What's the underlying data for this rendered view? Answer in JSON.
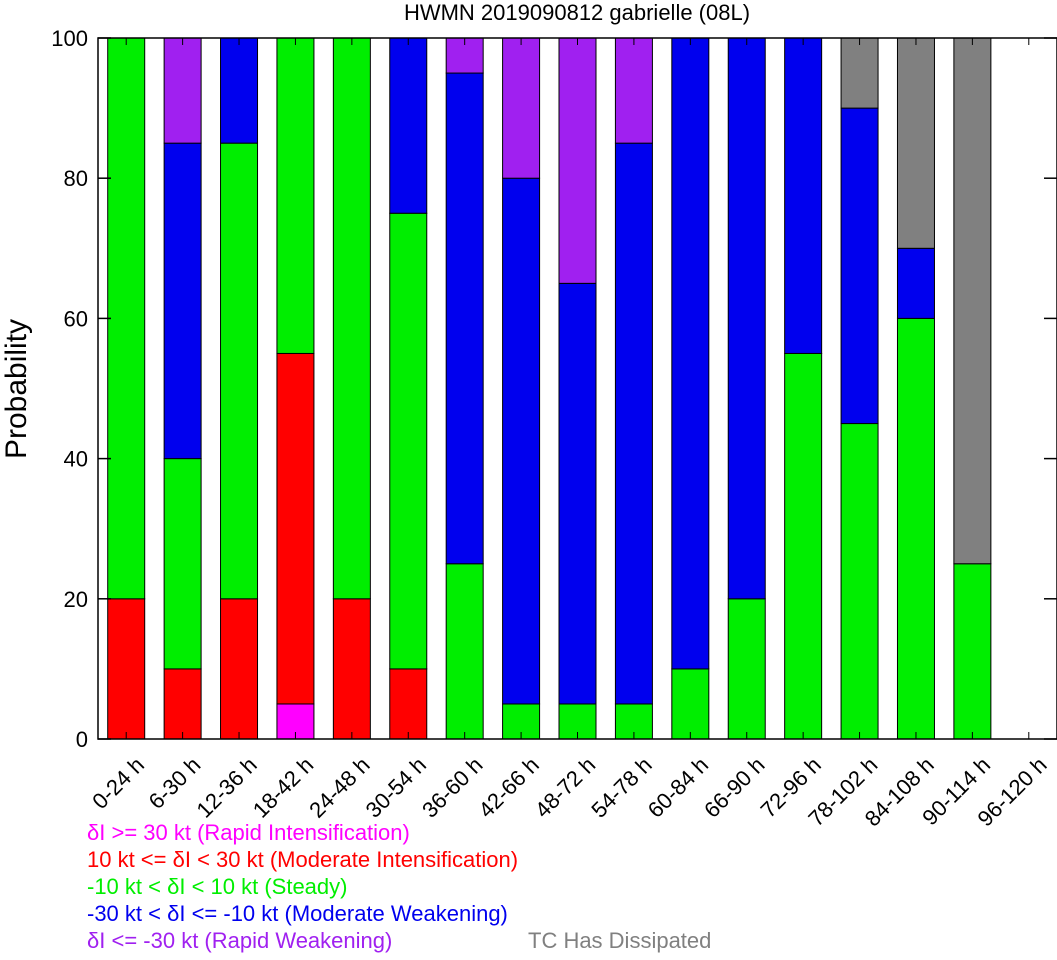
{
  "chart_data": {
    "type": "bar",
    "stacked": true,
    "title": "HWMN 2019090812 gabrielle (08L)",
    "xlabel": "",
    "ylabel": "Probability",
    "ylim": [
      0,
      100
    ],
    "yticks": [
      0,
      20,
      40,
      60,
      80,
      100
    ],
    "grid": false,
    "categories": [
      "0-24 h",
      "6-30 h",
      "12-36 h",
      "18-42 h",
      "24-48 h",
      "30-54 h",
      "36-60 h",
      "42-66 h",
      "48-72 h",
      "54-78 h",
      "60-84 h",
      "66-90 h",
      "72-96 h",
      "78-102 h",
      "84-108 h",
      "90-114 h",
      "96-120 h"
    ],
    "series": [
      {
        "key": "ri",
        "color": "#ff00ff",
        "values": [
          0,
          0,
          0,
          5,
          0,
          0,
          0,
          0,
          0,
          0,
          0,
          0,
          0,
          0,
          0,
          0,
          0
        ]
      },
      {
        "key": "mi",
        "color": "#ff0000",
        "values": [
          20,
          10,
          20,
          50,
          20,
          10,
          0,
          0,
          0,
          0,
          0,
          0,
          0,
          0,
          0,
          0,
          0
        ]
      },
      {
        "key": "steady",
        "color": "#00ee00",
        "values": [
          80,
          30,
          65,
          45,
          80,
          65,
          25,
          5,
          5,
          5,
          10,
          20,
          55,
          45,
          60,
          25,
          0
        ]
      },
      {
        "key": "mw",
        "color": "#0000ee",
        "values": [
          0,
          45,
          15,
          0,
          0,
          25,
          70,
          75,
          60,
          80,
          90,
          80,
          45,
          45,
          10,
          0,
          0
        ]
      },
      {
        "key": "rw",
        "color": "#a020f0",
        "values": [
          0,
          15,
          0,
          0,
          0,
          0,
          5,
          20,
          35,
          15,
          0,
          0,
          0,
          0,
          0,
          0,
          0
        ]
      },
      {
        "key": "dissipated",
        "color": "#808080",
        "values": [
          0,
          0,
          0,
          0,
          0,
          0,
          0,
          0,
          0,
          0,
          0,
          0,
          0,
          10,
          30,
          75,
          0
        ]
      }
    ],
    "legend": [
      {
        "text": "δI >= 30 kt (Rapid Intensification)",
        "color": "#ff00ff"
      },
      {
        "text": "10 kt <= δI < 30 kt (Moderate Intensification)",
        "color": "#ff0000"
      },
      {
        "text": "-10 kt < δI < 10 kt (Steady)",
        "color": "#00ee00"
      },
      {
        "text": "-30 kt < δI <= -10 kt (Moderate Weakening)",
        "color": "#0000ee"
      },
      {
        "text": "δI <= -30 kt (Rapid Weakening)",
        "color": "#a020f0"
      }
    ],
    "dissipated_label": {
      "text": "TC Has Dissipated",
      "color": "#808080"
    }
  }
}
